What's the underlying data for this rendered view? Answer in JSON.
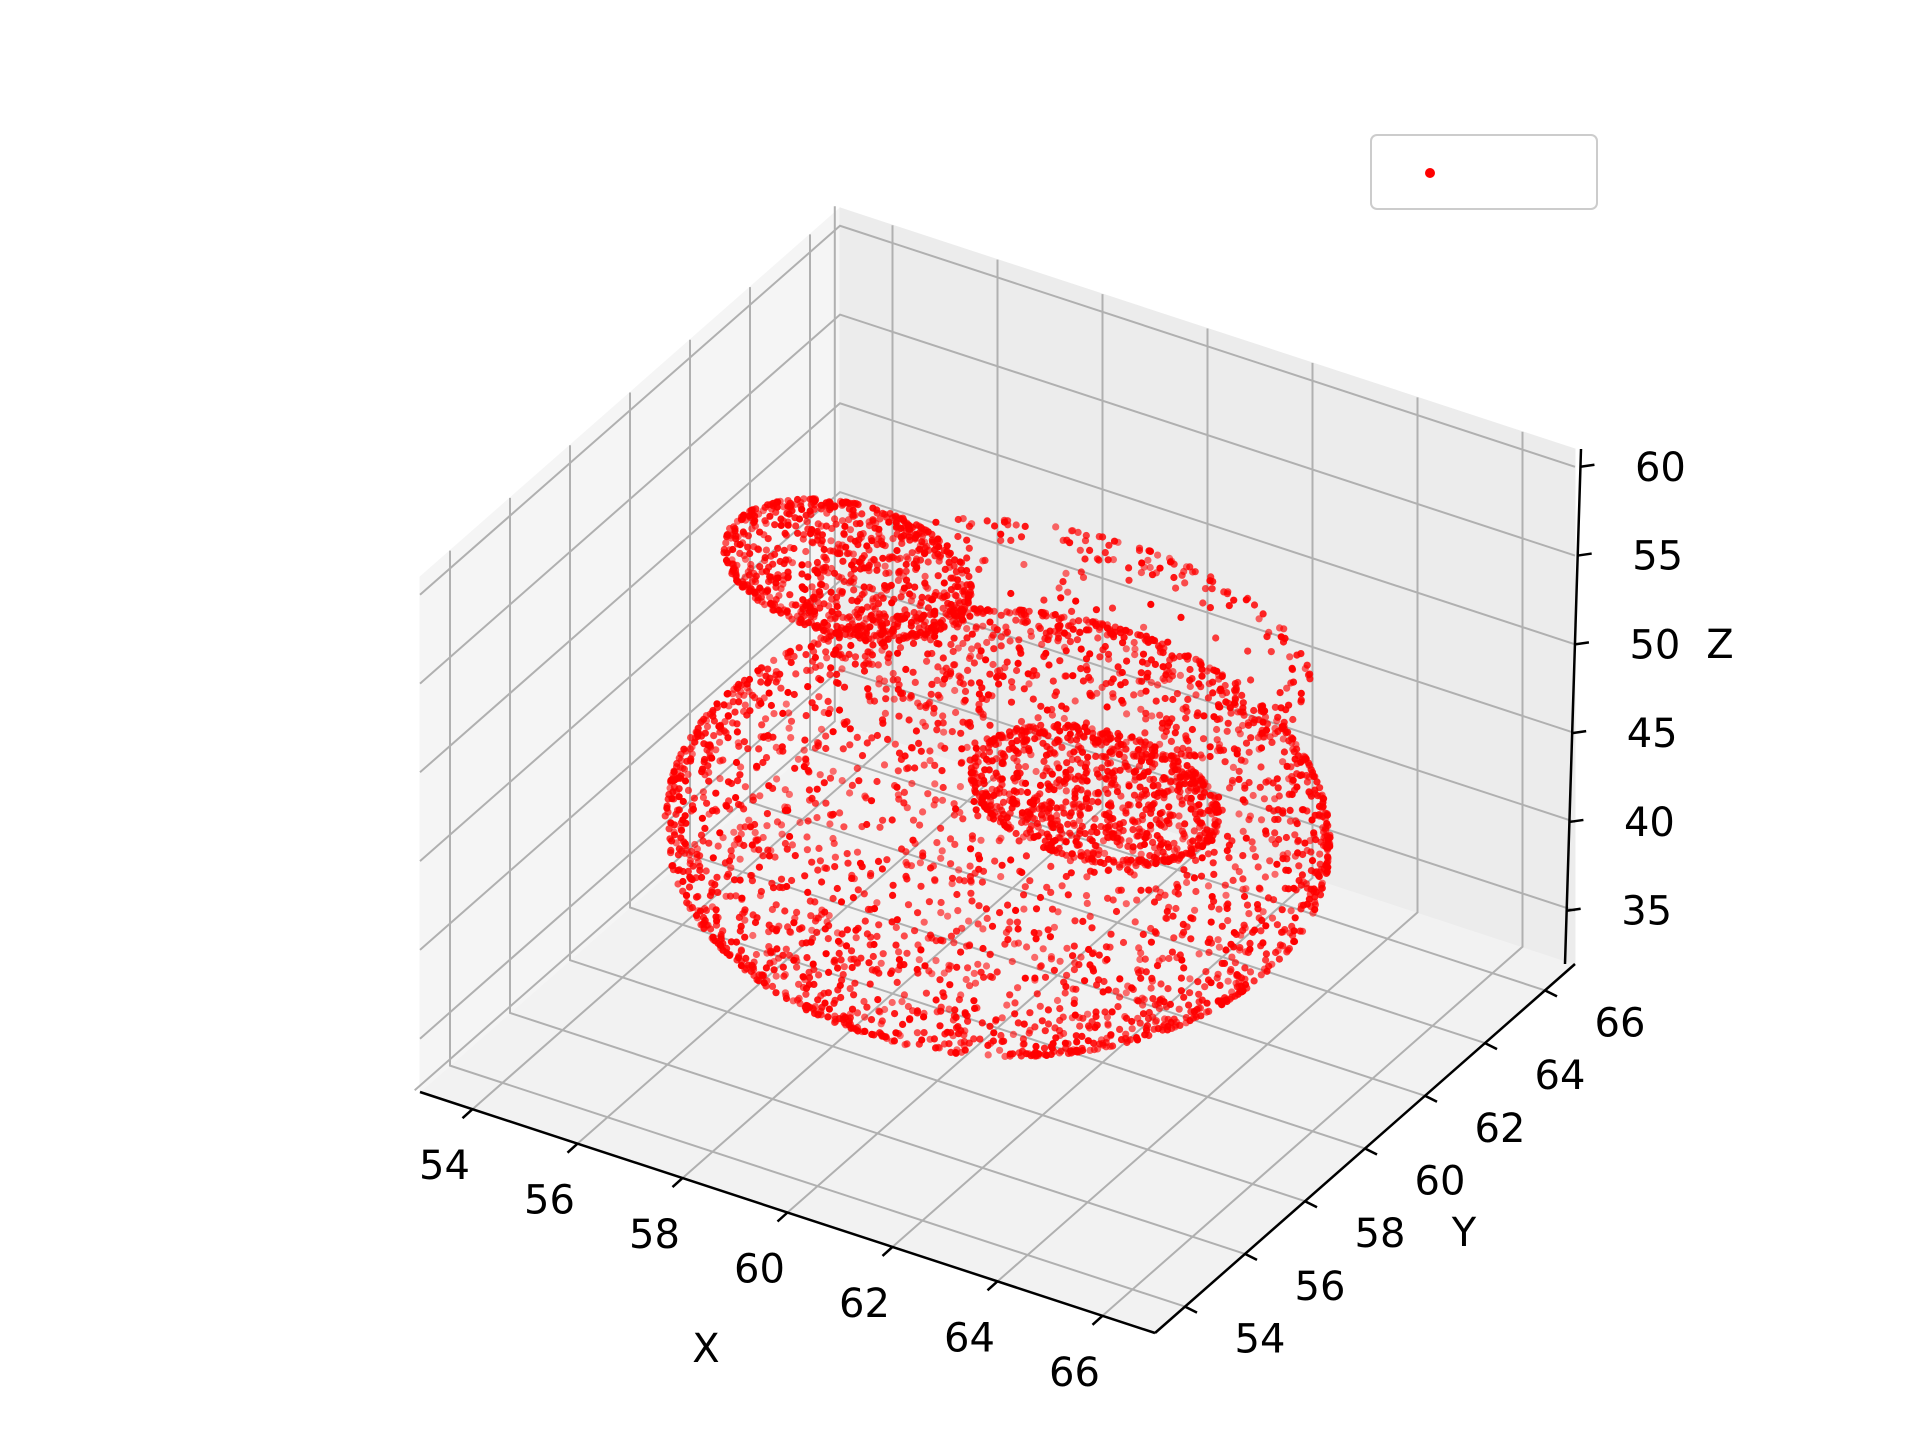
{
  "chart_data": {
    "type": "scatter",
    "projection": "3d",
    "title": "",
    "xlabel": "X",
    "ylabel": "Y",
    "zlabel": "Z",
    "xlim": [
      53,
      67
    ],
    "ylim": [
      53,
      67
    ],
    "zlim": [
      32,
      61
    ],
    "xticks": [
      "54",
      "56",
      "58",
      "60",
      "62",
      "64",
      "66"
    ],
    "yticks": [
      "54",
      "56",
      "58",
      "60",
      "62",
      "64",
      "66"
    ],
    "zticks": [
      "35",
      "40",
      "45",
      "50",
      "55",
      "60"
    ],
    "grid": true,
    "legend_position": "top-right",
    "series": [
      {
        "name": "",
        "color": "#ff0000",
        "marker": "dot",
        "shape": "point cloud of a bear-like head: large spherical head with two round ears, approx. sampled below",
        "head": {
          "center": [
            60,
            60,
            43
          ],
          "radius": [
            5.5,
            5.5,
            8
          ]
        },
        "ears": [
          {
            "center": [
              56,
              62,
              51
            ],
            "radius": [
              2.2,
              1.5,
              2.5
            ]
          },
          {
            "center": [
              63,
              58,
              51
            ],
            "radius": [
              2.2,
              1.5,
              2.5
            ]
          }
        ],
        "crown": {
          "center": [
            60,
            62,
            51
          ],
          "radius": [
            4.5,
            3,
            2.5
          ]
        },
        "x": [
          60,
          64.5,
          55.5,
          60,
          60,
          60,
          56,
          63,
          58,
          62,
          60,
          61
        ],
        "y": [
          60,
          60,
          60,
          64.5,
          55.5,
          60,
          62,
          58,
          63,
          57,
          58,
          62
        ],
        "z": [
          51,
          43,
          43,
          43,
          43,
          35,
          51,
          51,
          50,
          48,
          38,
          47
        ]
      }
    ]
  }
}
